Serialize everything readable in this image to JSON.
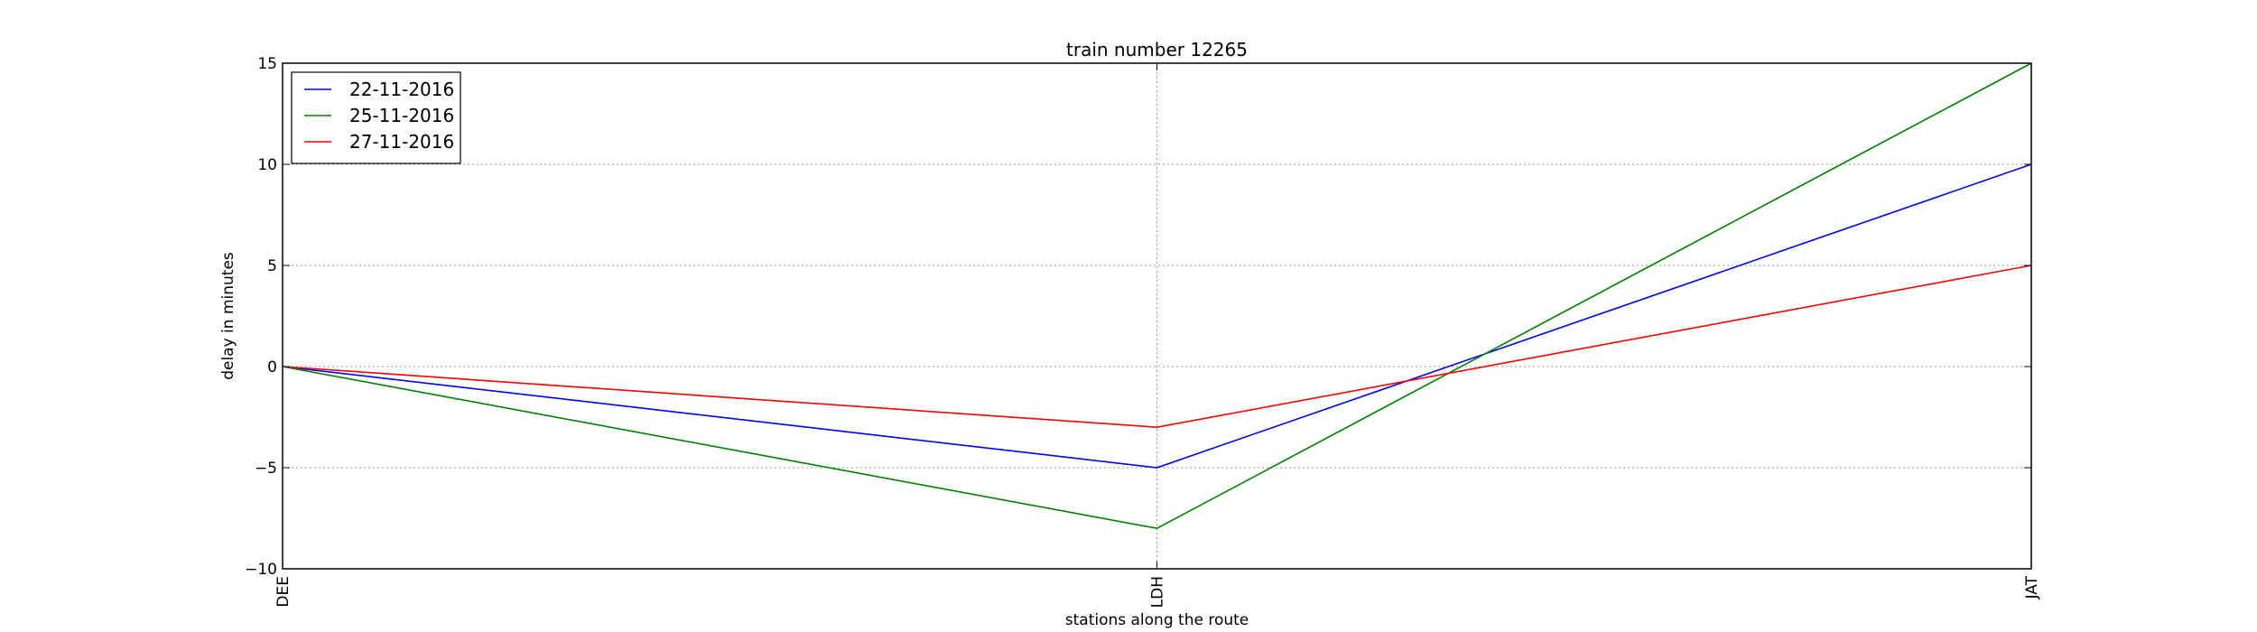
{
  "chart_data": {
    "type": "line",
    "title": "train number 12265",
    "xlabel": "stations along the route",
    "ylabel": "delay in minutes",
    "categories": [
      "DEE",
      "LDH",
      "JAT"
    ],
    "ylim": [
      -10,
      15
    ],
    "yticks": [
      -10,
      -5,
      0,
      5,
      10,
      15
    ],
    "ytick_labels": [
      "−10",
      "−5",
      "0",
      "5",
      "10",
      "15"
    ],
    "grid": true,
    "legend_position": "top-left",
    "series": [
      {
        "name": "22-11-2016",
        "color": "#0000ff",
        "values": [
          0,
          -5,
          10
        ]
      },
      {
        "name": "25-11-2016",
        "color": "#008000",
        "values": [
          0,
          -8,
          15
        ]
      },
      {
        "name": "27-11-2016",
        "color": "#ff0000",
        "values": [
          0,
          -3,
          5
        ]
      }
    ]
  }
}
